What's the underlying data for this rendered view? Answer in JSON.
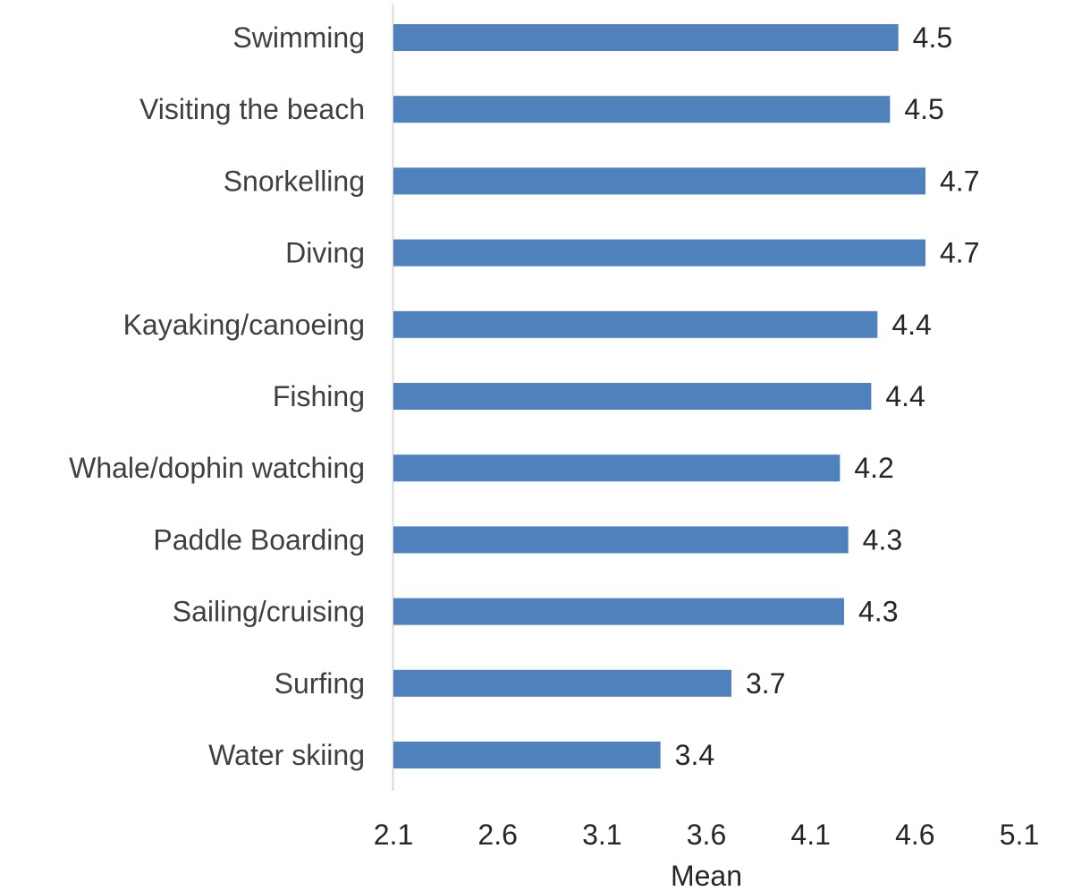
{
  "chart_data": {
    "type": "bar",
    "orientation": "horizontal",
    "categories": [
      "Swimming",
      "Visiting the beach",
      "Snorkelling",
      "Diving",
      "Kayaking/canoeing",
      "Fishing",
      "Whale/dophin watching",
      "Paddle Boarding",
      "Sailing/cruising",
      "Surfing",
      "Water skiing"
    ],
    "values": [
      4.52,
      4.48,
      4.65,
      4.65,
      4.42,
      4.39,
      4.24,
      4.28,
      4.26,
      3.72,
      3.38
    ],
    "value_labels": [
      "4.5",
      "4.5",
      "4.7",
      "4.7",
      "4.4",
      "4.4",
      "4.2",
      "4.3",
      "4.3",
      "3.7",
      "3.4"
    ],
    "xlabel": "Mean",
    "ylabel": "",
    "title": "",
    "xlim": [
      2.1,
      5.1
    ],
    "xticks": [
      "2.1",
      "2.6",
      "3.1",
      "3.6",
      "4.1",
      "4.6",
      "5.1"
    ],
    "grid": false,
    "legend": "none",
    "colors": {
      "bar": "#4f81bd",
      "axis_line": "#d9d9d9"
    }
  }
}
